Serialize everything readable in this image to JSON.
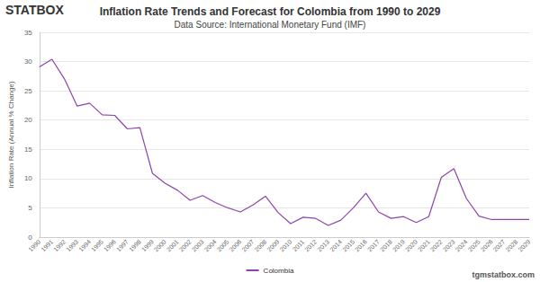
{
  "chart_data": {
    "type": "line",
    "title": "Inflation Rate Trends and Forecast for Colombia from 1990 to 2029",
    "subtitle": "Data Source: International Monetary Fund (IMF)",
    "logo_text": "STATBOX",
    "footer_text": "tgmstatbox.com",
    "y_label": "Inflation Rate (Annual % Change)",
    "categories": [
      "1990",
      "1991",
      "1992",
      "1993",
      "1994",
      "1995",
      "1996",
      "1997",
      "1998",
      "1999",
      "2000",
      "2001",
      "2002",
      "2003",
      "2004",
      "2005",
      "2006",
      "2007",
      "2008",
      "2009",
      "2010",
      "2011",
      "2012",
      "2013",
      "2014",
      "2015",
      "2016",
      "2017",
      "2018",
      "2019",
      "2020",
      "2021",
      "2022",
      "2023",
      "2024",
      "2025",
      "2026",
      "2027",
      "2028",
      "2029"
    ],
    "series": [
      {
        "name": "Colombia",
        "color": "#8e44ad",
        "values": [
          29.1,
          30.4,
          27.0,
          22.4,
          22.9,
          20.9,
          20.8,
          18.5,
          18.7,
          10.9,
          9.2,
          8.0,
          6.3,
          7.1,
          5.9,
          5.0,
          4.3,
          5.5,
          7.0,
          4.2,
          2.3,
          3.4,
          3.2,
          2.0,
          2.9,
          5.0,
          7.5,
          4.3,
          3.2,
          3.5,
          2.5,
          3.5,
          10.2,
          11.7,
          6.6,
          3.6,
          3.0,
          3.0,
          3.0,
          3.0
        ]
      }
    ],
    "ylim": [
      0,
      35
    ],
    "yticks": [
      0,
      5,
      10,
      15,
      20,
      25,
      30,
      35
    ],
    "grid": true,
    "legend": "bottom"
  }
}
